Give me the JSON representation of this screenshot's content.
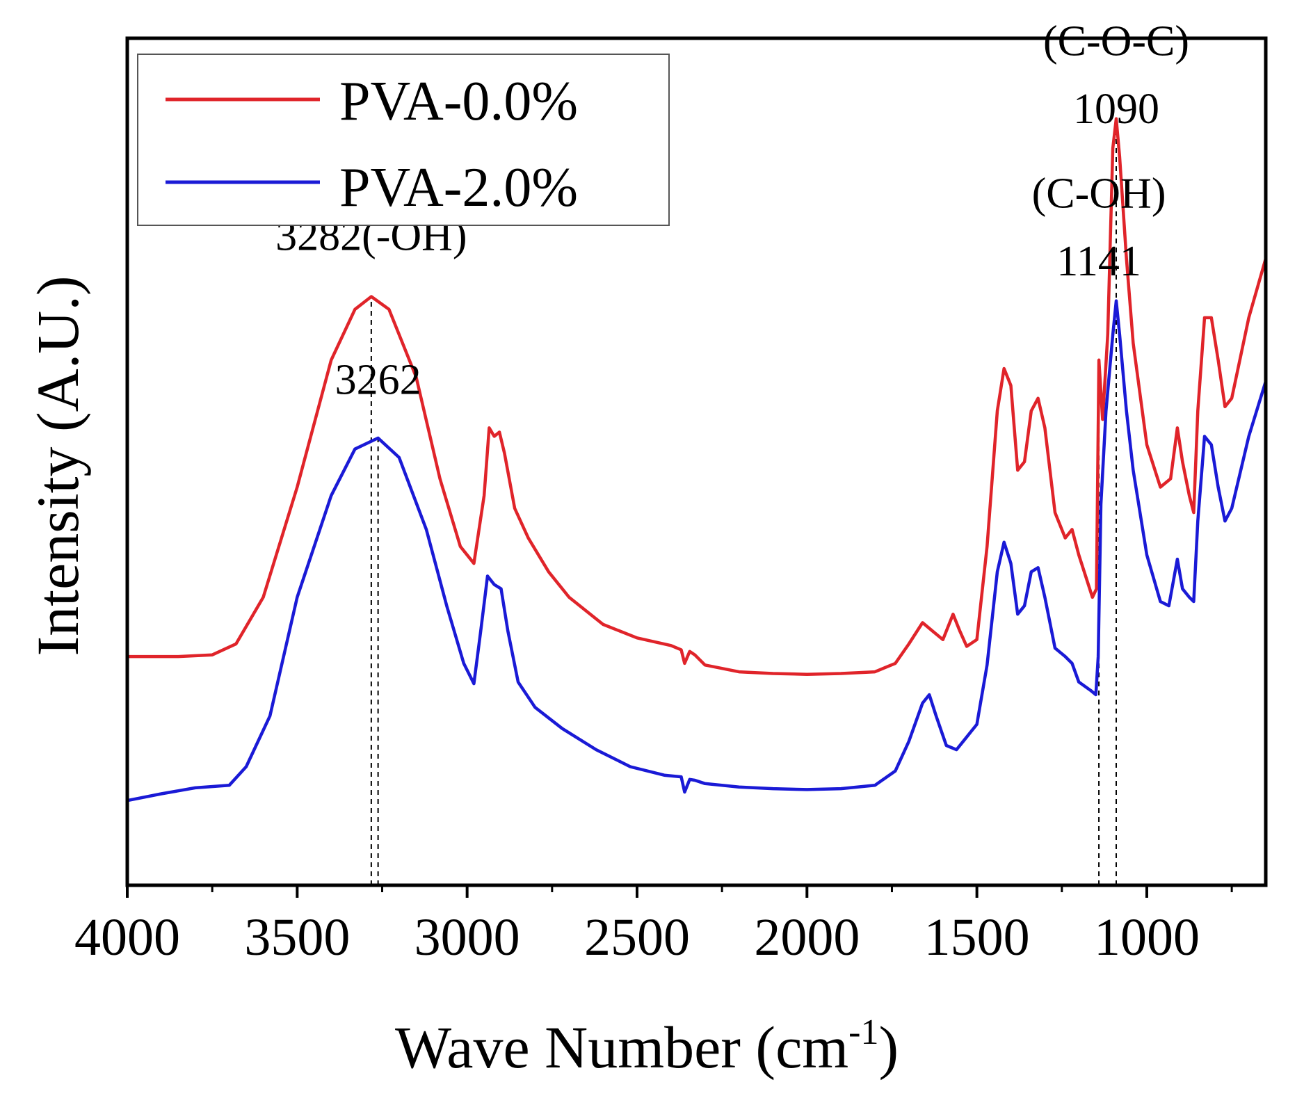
{
  "chart_data": {
    "type": "line",
    "xlabel_main": "Wave Number (cm",
    "xlabel_sup": "-1",
    "xlabel_end": ")",
    "ylabel": "Intensity (A.U.)",
    "xlim": [
      4000,
      650
    ],
    "ylim": [
      0,
      1.0
    ],
    "xticks": [
      4000,
      3500,
      3000,
      2500,
      2000,
      1500,
      1000
    ],
    "xtick_labels": [
      "4000",
      "3500",
      "3000",
      "2500",
      "2000",
      "1500",
      "1000"
    ],
    "legend_position": "top-left",
    "series": [
      {
        "name": "PVA-0.0%",
        "color": "#e0242a",
        "points": [
          [
            4000,
            0.27
          ],
          [
            3850,
            0.27
          ],
          [
            3750,
            0.272
          ],
          [
            3680,
            0.285
          ],
          [
            3600,
            0.34
          ],
          [
            3500,
            0.47
          ],
          [
            3400,
            0.62
          ],
          [
            3330,
            0.68
          ],
          [
            3282,
            0.695
          ],
          [
            3230,
            0.68
          ],
          [
            3150,
            0.6
          ],
          [
            3080,
            0.48
          ],
          [
            3020,
            0.4
          ],
          [
            2980,
            0.38
          ],
          [
            2950,
            0.46
          ],
          [
            2935,
            0.54
          ],
          [
            2920,
            0.53
          ],
          [
            2905,
            0.535
          ],
          [
            2890,
            0.51
          ],
          [
            2860,
            0.445
          ],
          [
            2820,
            0.41
          ],
          [
            2760,
            0.37
          ],
          [
            2700,
            0.34
          ],
          [
            2600,
            0.308
          ],
          [
            2500,
            0.292
          ],
          [
            2400,
            0.283
          ],
          [
            2370,
            0.278
          ],
          [
            2360,
            0.262
          ],
          [
            2345,
            0.276
          ],
          [
            2330,
            0.272
          ],
          [
            2300,
            0.26
          ],
          [
            2200,
            0.252
          ],
          [
            2100,
            0.25
          ],
          [
            2000,
            0.249
          ],
          [
            1900,
            0.25
          ],
          [
            1800,
            0.252
          ],
          [
            1740,
            0.262
          ],
          [
            1700,
            0.285
          ],
          [
            1660,
            0.31
          ],
          [
            1630,
            0.3
          ],
          [
            1600,
            0.29
          ],
          [
            1570,
            0.32
          ],
          [
            1550,
            0.3
          ],
          [
            1530,
            0.282
          ],
          [
            1500,
            0.29
          ],
          [
            1470,
            0.4
          ],
          [
            1440,
            0.56
          ],
          [
            1420,
            0.61
          ],
          [
            1400,
            0.59
          ],
          [
            1380,
            0.49
          ],
          [
            1360,
            0.5
          ],
          [
            1340,
            0.56
          ],
          [
            1320,
            0.575
          ],
          [
            1300,
            0.54
          ],
          [
            1270,
            0.44
          ],
          [
            1240,
            0.41
          ],
          [
            1220,
            0.42
          ],
          [
            1200,
            0.39
          ],
          [
            1160,
            0.34
          ],
          [
            1148,
            0.35
          ],
          [
            1141,
            0.62
          ],
          [
            1130,
            0.55
          ],
          [
            1115,
            0.65
          ],
          [
            1100,
            0.87
          ],
          [
            1090,
            0.905
          ],
          [
            1080,
            0.86
          ],
          [
            1060,
            0.74
          ],
          [
            1040,
            0.64
          ],
          [
            1000,
            0.52
          ],
          [
            960,
            0.47
          ],
          [
            930,
            0.48
          ],
          [
            910,
            0.54
          ],
          [
            895,
            0.5
          ],
          [
            875,
            0.46
          ],
          [
            862,
            0.44
          ],
          [
            850,
            0.56
          ],
          [
            830,
            0.67
          ],
          [
            810,
            0.67
          ],
          [
            790,
            0.62
          ],
          [
            770,
            0.565
          ],
          [
            750,
            0.575
          ],
          [
            700,
            0.67
          ],
          [
            650,
            0.74
          ]
        ]
      },
      {
        "name": "PVA-2.0%",
        "color": "#1a1ad6",
        "points": [
          [
            4000,
            0.1
          ],
          [
            3900,
            0.108
          ],
          [
            3800,
            0.115
          ],
          [
            3700,
            0.118
          ],
          [
            3650,
            0.14
          ],
          [
            3580,
            0.2
          ],
          [
            3500,
            0.34
          ],
          [
            3400,
            0.46
          ],
          [
            3330,
            0.515
          ],
          [
            3262,
            0.528
          ],
          [
            3200,
            0.505
          ],
          [
            3120,
            0.42
          ],
          [
            3060,
            0.33
          ],
          [
            3010,
            0.262
          ],
          [
            2980,
            0.238
          ],
          [
            2960,
            0.3
          ],
          [
            2940,
            0.365
          ],
          [
            2920,
            0.355
          ],
          [
            2900,
            0.35
          ],
          [
            2880,
            0.3
          ],
          [
            2850,
            0.24
          ],
          [
            2800,
            0.21
          ],
          [
            2720,
            0.185
          ],
          [
            2620,
            0.16
          ],
          [
            2520,
            0.14
          ],
          [
            2420,
            0.13
          ],
          [
            2370,
            0.128
          ],
          [
            2360,
            0.11
          ],
          [
            2345,
            0.125
          ],
          [
            2330,
            0.124
          ],
          [
            2300,
            0.12
          ],
          [
            2200,
            0.116
          ],
          [
            2100,
            0.114
          ],
          [
            2000,
            0.113
          ],
          [
            1900,
            0.114
          ],
          [
            1800,
            0.118
          ],
          [
            1740,
            0.135
          ],
          [
            1700,
            0.17
          ],
          [
            1660,
            0.215
          ],
          [
            1640,
            0.225
          ],
          [
            1620,
            0.2
          ],
          [
            1590,
            0.165
          ],
          [
            1560,
            0.16
          ],
          [
            1530,
            0.175
          ],
          [
            1500,
            0.19
          ],
          [
            1470,
            0.26
          ],
          [
            1440,
            0.37
          ],
          [
            1420,
            0.405
          ],
          [
            1400,
            0.38
          ],
          [
            1380,
            0.32
          ],
          [
            1360,
            0.33
          ],
          [
            1340,
            0.37
          ],
          [
            1320,
            0.375
          ],
          [
            1300,
            0.34
          ],
          [
            1270,
            0.28
          ],
          [
            1240,
            0.27
          ],
          [
            1220,
            0.262
          ],
          [
            1200,
            0.24
          ],
          [
            1165,
            0.23
          ],
          [
            1150,
            0.225
          ],
          [
            1143,
            0.27
          ],
          [
            1135,
            0.45
          ],
          [
            1120,
            0.56
          ],
          [
            1100,
            0.65
          ],
          [
            1090,
            0.69
          ],
          [
            1080,
            0.65
          ],
          [
            1060,
            0.56
          ],
          [
            1040,
            0.49
          ],
          [
            1000,
            0.39
          ],
          [
            960,
            0.335
          ],
          [
            935,
            0.33
          ],
          [
            910,
            0.385
          ],
          [
            895,
            0.35
          ],
          [
            875,
            0.34
          ],
          [
            862,
            0.335
          ],
          [
            850,
            0.43
          ],
          [
            830,
            0.53
          ],
          [
            810,
            0.52
          ],
          [
            790,
            0.47
          ],
          [
            770,
            0.43
          ],
          [
            750,
            0.445
          ],
          [
            700,
            0.53
          ],
          [
            650,
            0.595
          ]
        ]
      }
    ],
    "reference_lines": [
      {
        "x": 3282,
        "series": "PVA-0.0%"
      },
      {
        "x": 3262,
        "series": "PVA-2.0%"
      },
      {
        "x": 1141,
        "series": "PVA-0.0%"
      },
      {
        "x": 1090,
        "series": "PVA-0.0%"
      }
    ],
    "annotations": [
      {
        "text": "3282(-OH)",
        "x": 3282,
        "y": 0.75
      },
      {
        "text": "3262",
        "x": 3262,
        "y": 0.58
      },
      {
        "text": "(C-OH)",
        "x": 1141,
        "y": 0.8
      },
      {
        "text": "1141",
        "x": 1141,
        "y": 0.72
      },
      {
        "text": "(C-O-C)",
        "x": 1090,
        "y": 0.98
      },
      {
        "text": "1090",
        "x": 1090,
        "y": 0.9
      }
    ]
  }
}
